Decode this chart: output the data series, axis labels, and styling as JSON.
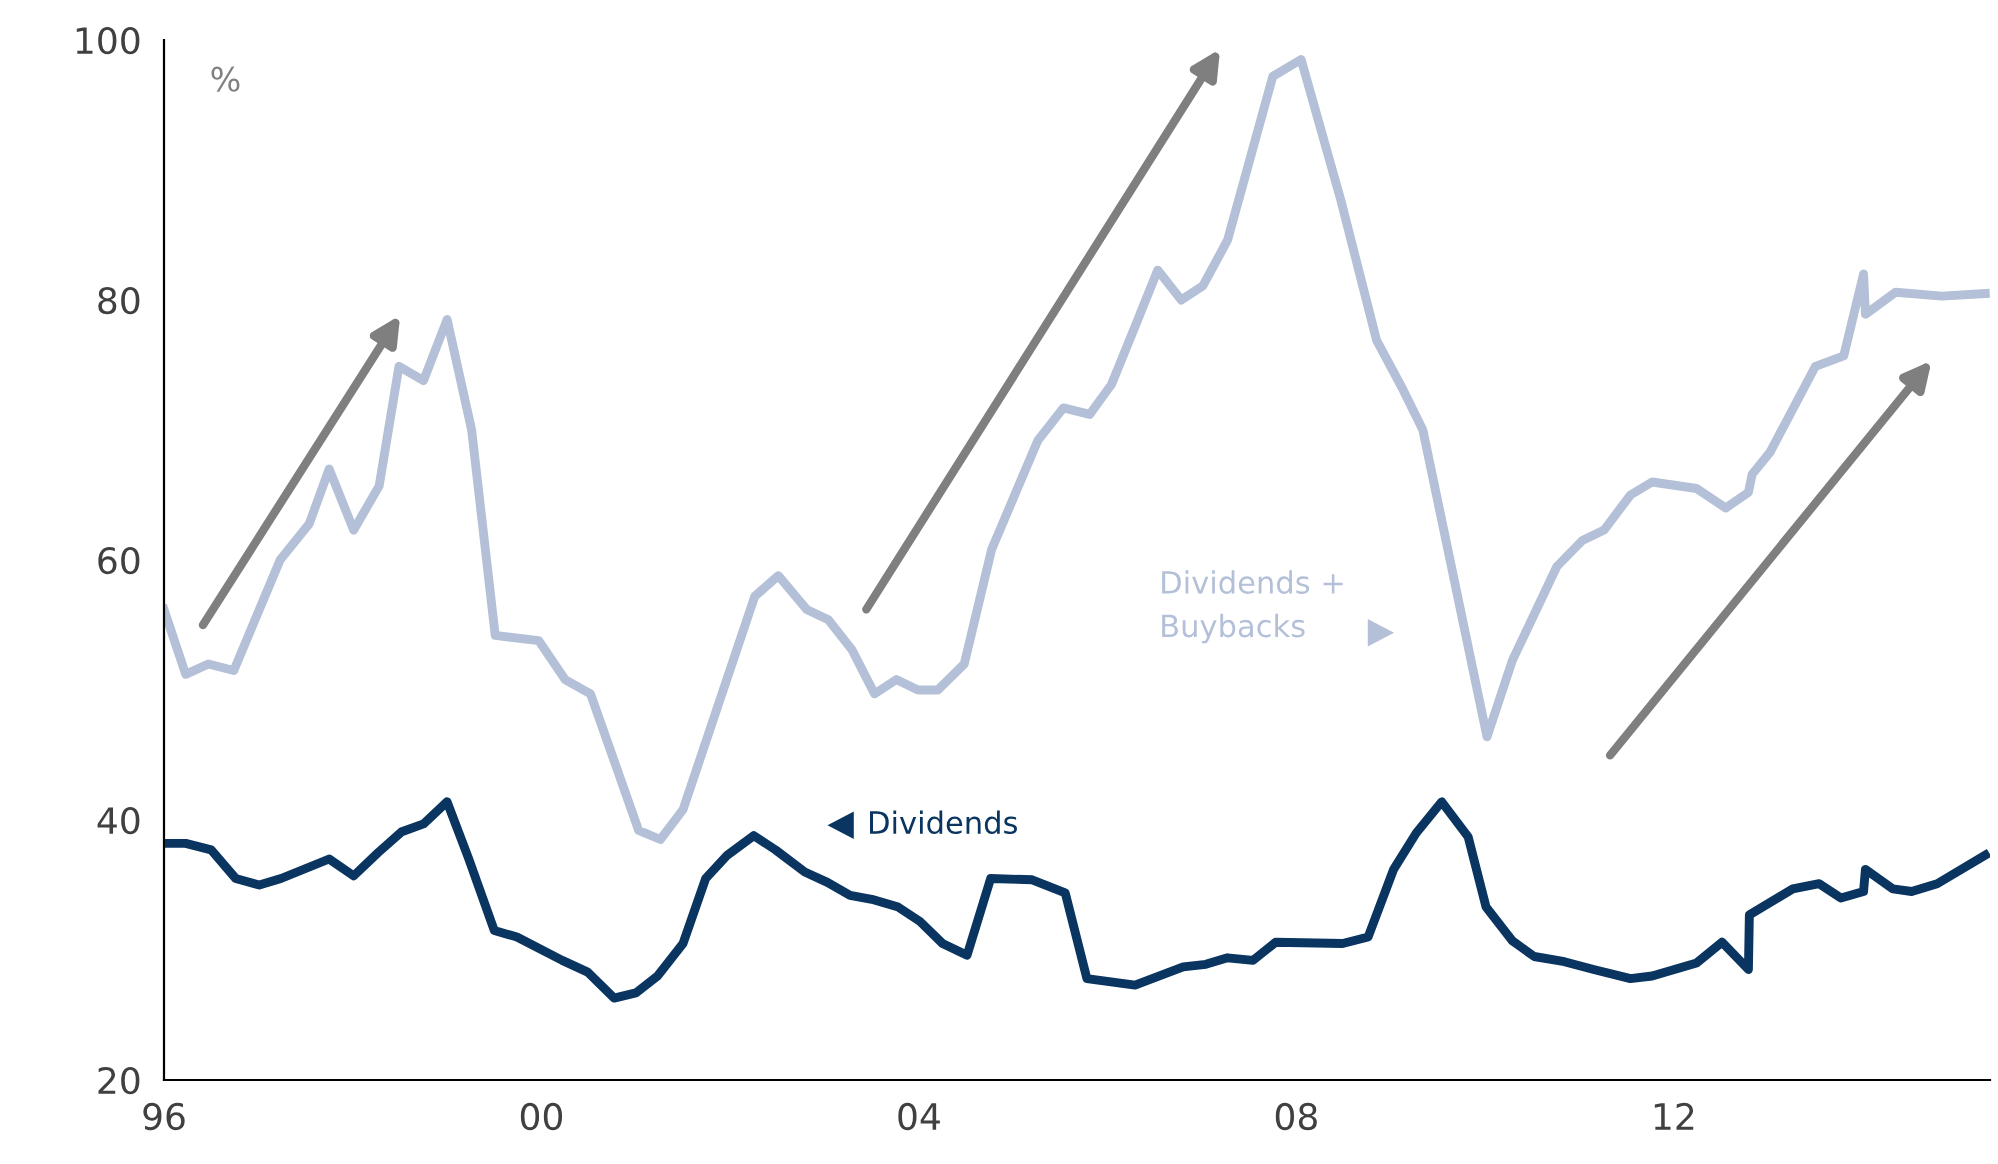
{
  "chart_data": {
    "type": "line",
    "annotations": [
      "%"
    ],
    "xlim": [
      1996,
      2015.35
    ],
    "xticks": [
      {
        "value": 1996,
        "label": "96"
      },
      {
        "value": 2000,
        "label": "00"
      },
      {
        "value": 2004,
        "label": "04"
      },
      {
        "value": 2008,
        "label": "08"
      },
      {
        "value": 2012,
        "label": "12"
      }
    ],
    "ylim": [
      20,
      100
    ],
    "yticks": [
      20,
      40,
      60,
      80,
      100
    ],
    "grid": false,
    "legend": "bottom",
    "marker": "none",
    "line_style": "solid",
    "series": [
      {
        "name": "Dividends +\nBuybacks",
        "color": "#b4c0d8",
        "x": [
          1996.0,
          1996.23,
          1996.47,
          1996.74,
          1997.23,
          1997.54,
          1997.75,
          1998.01,
          1998.28,
          1998.49,
          1998.75,
          1999.0,
          1999.26,
          1999.51,
          1999.97,
          2000.25,
          2000.52,
          2001.03,
          2001.26,
          2001.5,
          2002.26,
          2002.51,
          2002.81,
          2003.04,
          2003.29,
          2003.53,
          2003.76,
          2003.99,
          2004.2,
          2004.48,
          2004.77,
          2005.26,
          2005.53,
          2005.81,
          2006.04,
          2006.32,
          2006.53,
          2006.78,
          2007.01,
          2007.27,
          2007.75,
          2008.05,
          2008.47,
          2008.85,
          2009.13,
          2009.34,
          2010.02,
          2010.29,
          2010.76,
          2011.03,
          2011.26,
          2011.54,
          2011.77,
          2012.24,
          2012.55,
          2012.79,
          2012.83,
          2013.02,
          2013.5,
          2013.8,
          2014.01,
          2014.03,
          2014.35,
          2014.84,
          2015.3
        ],
        "values": [
          56.2,
          51.2,
          52,
          51.5,
          60,
          62.8,
          67,
          62.3,
          65.7,
          74.9,
          73.8,
          78.5,
          70,
          54.2,
          53.8,
          50.8,
          49.7,
          39.2,
          38.5,
          40.8,
          57.2,
          58.8,
          56.2,
          55.4,
          53.1,
          49.7,
          50.8,
          50,
          50,
          52,
          60.8,
          69.2,
          71.7,
          71.2,
          73.5,
          78.5,
          82.3,
          80,
          81.1,
          84.6,
          97.2,
          98.5,
          87.7,
          76.9,
          73.1,
          70,
          46.4,
          52.3,
          59.5,
          61.5,
          62.3,
          65,
          66,
          65.5,
          64,
          65.2,
          66.6,
          68.3,
          74.9,
          75.7,
          82,
          78.9,
          80.6,
          80.3,
          80.5
        ]
      },
      {
        "name": "Dividends",
        "color": "#0a3560",
        "x": [
          1996.0,
          1996.23,
          1996.5,
          1996.76,
          1997.01,
          1997.24,
          1997.75,
          1998.01,
          1998.27,
          1998.52,
          1998.75,
          1999.0,
          1999.23,
          1999.5,
          1999.74,
          2000.22,
          2000.49,
          2000.77,
          2001.0,
          2001.23,
          2001.5,
          2001.74,
          2001.97,
          2002.25,
          2002.48,
          2002.79,
          2003.03,
          2003.27,
          2003.5,
          2003.78,
          2004.01,
          2004.25,
          2004.51,
          2004.76,
          2005.2,
          2005.55,
          2005.78,
          2006.29,
          2006.8,
          2007.04,
          2007.27,
          2007.54,
          2007.78,
          2008.49,
          2008.76,
          2009.03,
          2009.27,
          2009.54,
          2009.82,
          2010.01,
          2010.29,
          2010.52,
          2010.84,
          2011.15,
          2011.54,
          2011.77,
          2012.24,
          2012.51,
          2012.79,
          2012.8,
          2013.26,
          2013.54,
          2013.77,
          2014.01,
          2014.03,
          2014.32,
          2014.52,
          2014.79,
          2015.3
        ],
        "values": [
          38.2,
          38.2,
          37.7,
          35.5,
          35,
          35.5,
          37,
          35.7,
          37.5,
          39.1,
          39.7,
          41.4,
          37,
          31.5,
          31,
          29.2,
          28.3,
          26.3,
          26.7,
          28,
          30.5,
          35.5,
          37.3,
          38.8,
          37.7,
          36,
          35.2,
          34.2,
          33.9,
          33.3,
          32.2,
          30.5,
          29.6,
          35.5,
          35.4,
          34.4,
          27.8,
          27.3,
          28.7,
          28.9,
          29.4,
          29.2,
          30.6,
          30.5,
          31,
          36.2,
          39,
          41.4,
          38.7,
          33.3,
          30.7,
          29.5,
          29.1,
          28.5,
          27.8,
          28,
          29,
          30.6,
          28.5,
          32.7,
          34.7,
          35.1,
          34,
          34.5,
          36.2,
          34.7,
          34.5,
          35.1,
          37.3
        ]
      }
    ]
  }
}
